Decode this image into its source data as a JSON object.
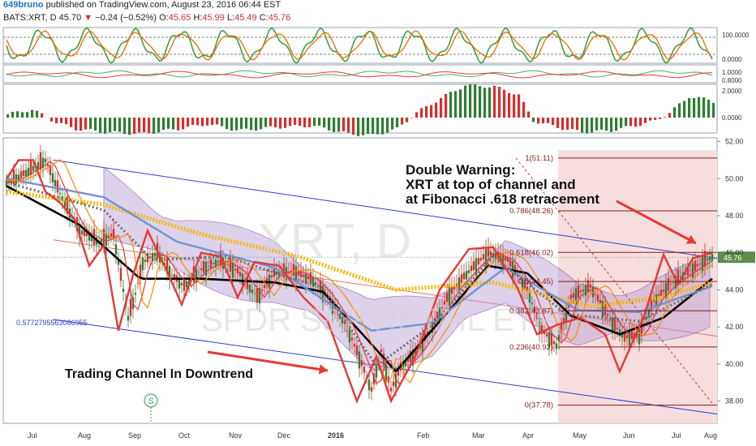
{
  "header": {
    "user": "649bruno",
    "published_text": "published on TradingView.com, August 23, 2016 06:44 EST",
    "symbol": "BATS:XRT, D",
    "last": "45.70",
    "change_arrow": "▼",
    "change": "−0.24 (−0.52%)",
    "o_label": "O:",
    "o": "45.65",
    "h_label": "H:",
    "h": "45.99",
    "l_label": "L:",
    "l": "45.49",
    "c_label": "C:",
    "c": "45.76"
  },
  "watermark": {
    "symbol": "XRT, D",
    "name": "SPDR S&P RETAIL ETF"
  },
  "panels": {
    "stoch_ticks": [
      "100.0000",
      "0.0000"
    ],
    "ratio_ticks": [
      "1.0000",
      "0.8000"
    ],
    "hist_ticks": [
      "2.0000",
      "0.0000"
    ]
  },
  "annotations": {
    "warning_line1": "Double Warning:",
    "warning_line2": "XRT at top of channel and",
    "warning_line3": "at Fibonacci .618 retracement",
    "channel_text": "Trading Channel In Downtrend",
    "fib_value_label": "0.5772795563086955",
    "s_marker": "S"
  },
  "price_label": "45.76",
  "colors": {
    "up": "#2e7d32",
    "down": "#d32f2f",
    "channel": "#2e3ccf",
    "annotation_red": "#e53935",
    "fib": "#8b1a1a",
    "fib_bg": "#f6dede",
    "ema_gold": "#f2b705",
    "ma_blue": "#6f93d8",
    "ma_black": "#000000",
    "ma_gray": "#707070",
    "cloud": "#b69ad0"
  },
  "chart_data": {
    "type": "candlestick",
    "y_axis_ticks": [
      "52.00",
      "50.00",
      "48.00",
      "46.00",
      "44.00",
      "42.00",
      "40.00",
      "38.00"
    ],
    "ylim": [
      36.8,
      52.2
    ],
    "x_axis_labels": [
      "Jul",
      "Aug",
      "Sep",
      "Oct",
      "Nov",
      "Dec",
      "2016",
      "Feb",
      "Mar",
      "Apr",
      "May",
      "Jun",
      "Jul",
      "Aug"
    ],
    "last_close": 45.76,
    "channel_upper": [
      [
        0,
        51.0
      ],
      [
        1,
        45.7
      ]
    ],
    "channel_lower": [
      [
        0,
        42.4
      ],
      [
        1,
        37.3
      ]
    ],
    "fibonacci": [
      {
        "label": "1(51.11)",
        "value": 51.11
      },
      {
        "label": "0.786(48.26)",
        "value": 48.26
      },
      {
        "label": "0.618(46.02)",
        "value": 46.02
      },
      {
        "label": "0.5(44.45)",
        "value": 44.45
      },
      {
        "label": "0.382(42.87)",
        "value": 42.87
      },
      {
        "label": "0.236(40.92)",
        "value": 40.92
      },
      {
        "label": "0(37.78)",
        "value": 37.78
      }
    ],
    "price_path": [
      [
        0,
        49.8
      ],
      [
        5,
        50.1
      ],
      [
        10,
        50.5
      ],
      [
        16,
        51.0
      ],
      [
        22,
        49.2
      ],
      [
        30,
        47.2
      ],
      [
        38,
        46.6
      ],
      [
        44,
        47.0
      ],
      [
        50,
        42.5
      ],
      [
        53,
        43.8
      ],
      [
        56,
        45.5
      ],
      [
        62,
        46.0
      ],
      [
        68,
        44.8
      ],
      [
        73,
        44.2
      ],
      [
        80,
        45.1
      ],
      [
        88,
        45.6
      ],
      [
        95,
        45.0
      ],
      [
        103,
        43.6
      ],
      [
        110,
        44.9
      ],
      [
        118,
        45.0
      ],
      [
        126,
        44.5
      ],
      [
        132,
        43.6
      ],
      [
        140,
        42.0
      ],
      [
        146,
        40.0
      ],
      [
        150,
        38.6
      ],
      [
        154,
        40.7
      ],
      [
        158,
        38.6
      ],
      [
        162,
        39.8
      ],
      [
        168,
        40.6
      ],
      [
        175,
        42.0
      ],
      [
        182,
        43.8
      ],
      [
        190,
        45.0
      ],
      [
        198,
        46.0
      ],
      [
        206,
        45.6
      ],
      [
        214,
        44.0
      ],
      [
        220,
        41.8
      ],
      [
        226,
        41.0
      ],
      [
        232,
        43.6
      ],
      [
        240,
        44.2
      ],
      [
        248,
        42.4
      ],
      [
        254,
        41.4
      ],
      [
        260,
        41.6
      ],
      [
        266,
        43.4
      ],
      [
        272,
        44.2
      ],
      [
        278,
        44.8
      ],
      [
        285,
        45.4
      ],
      [
        290,
        45.8
      ]
    ],
    "swing_zigzag": [
      [
        0,
        50.0
      ],
      [
        5,
        51.0
      ],
      [
        11,
        51.0
      ],
      [
        16,
        49.3
      ],
      [
        22,
        48.7
      ],
      [
        28,
        47.8
      ],
      [
        34,
        45.3
      ],
      [
        40,
        46.4
      ],
      [
        46,
        41.8
      ],
      [
        52,
        44.8
      ],
      [
        58,
        47.2
      ],
      [
        66,
        45.0
      ],
      [
        72,
        43.2
      ],
      [
        80,
        46.0
      ],
      [
        88,
        45.8
      ],
      [
        95,
        43.6
      ],
      [
        102,
        45.5
      ],
      [
        112,
        45.3
      ],
      [
        122,
        43.6
      ],
      [
        132,
        42.3
      ],
      [
        144,
        38.0
      ],
      [
        152,
        40.4
      ],
      [
        158,
        38.0
      ],
      [
        168,
        40.4
      ],
      [
        178,
        44.0
      ],
      [
        190,
        46.2
      ],
      [
        200,
        46.3
      ],
      [
        210,
        44.1
      ],
      [
        218,
        41.6
      ],
      [
        226,
        42.1
      ],
      [
        236,
        42.5
      ],
      [
        246,
        41.6
      ],
      [
        252,
        39.6
      ],
      [
        262,
        42.6
      ],
      [
        270,
        45.9
      ],
      [
        276,
        44.3
      ],
      [
        282,
        45.7
      ],
      [
        290,
        46.0
      ]
    ],
    "moving_averages": [
      {
        "color": "black",
        "values": [
          [
            0,
            49.6
          ],
          [
            30,
            47.5
          ],
          [
            55,
            44.6
          ],
          [
            80,
            44.6
          ],
          [
            110,
            44.4
          ],
          [
            130,
            43.9
          ],
          [
            145,
            41.8
          ],
          [
            160,
            39.6
          ],
          [
            180,
            42.6
          ],
          [
            198,
            45.3
          ],
          [
            214,
            44.9
          ],
          [
            232,
            42.6
          ],
          [
            252,
            41.6
          ],
          [
            270,
            42.5
          ],
          [
            290,
            44.6
          ]
        ]
      },
      {
        "color": "gold",
        "values": [
          [
            0,
            49.3
          ],
          [
            40,
            48.6
          ],
          [
            80,
            47.0
          ],
          [
            120,
            45.8
          ],
          [
            160,
            44.0
          ],
          [
            200,
            44.4
          ],
          [
            240,
            43.1
          ],
          [
            270,
            43.6
          ],
          [
            290,
            44.4
          ]
        ]
      },
      {
        "color": "blue",
        "values": [
          [
            0,
            50.0
          ],
          [
            40,
            49.0
          ],
          [
            70,
            46.6
          ],
          [
            110,
            45.2
          ],
          [
            150,
            41.8
          ],
          [
            175,
            42.2
          ],
          [
            205,
            45.2
          ],
          [
            235,
            42.9
          ],
          [
            260,
            42.8
          ],
          [
            290,
            44.2
          ]
        ]
      },
      {
        "color": "gray",
        "values": [
          [
            0,
            49.8
          ],
          [
            40,
            48.3
          ],
          [
            60,
            45.6
          ],
          [
            90,
            45.8
          ],
          [
            130,
            44.1
          ],
          [
            152,
            39.9
          ],
          [
            175,
            42.1
          ],
          [
            200,
            45.8
          ],
          [
            230,
            42.7
          ],
          [
            260,
            42.3
          ],
          [
            290,
            44.3
          ]
        ]
      }
    ]
  }
}
